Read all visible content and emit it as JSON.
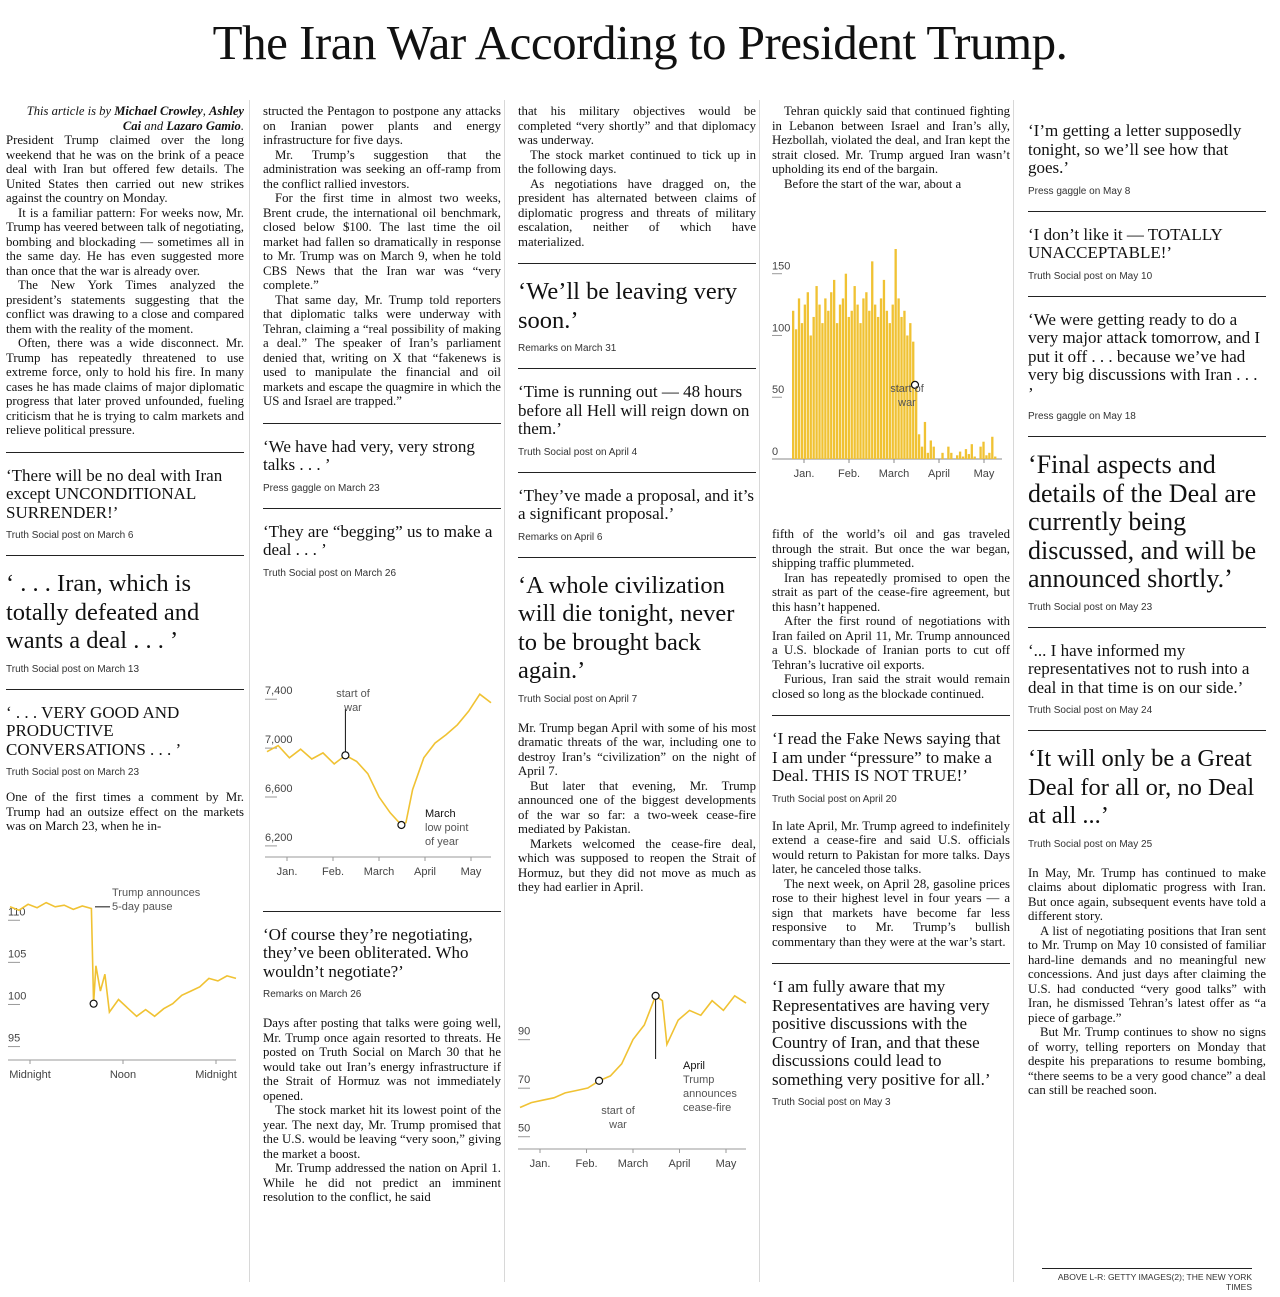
{
  "headline": "The Iran War According to President Trump.",
  "byline": {
    "prefix": "This article is by",
    "author1": "Michael Crowley",
    "author2": "Ashley Cai",
    "and": "and",
    "author3": "Lazaro Gamio"
  },
  "col1": {
    "p1": "President Trump claimed over the long weekend that he was on the brink of a peace deal with Iran but offered few details. The United States then carried out new strikes against the country on Monday.",
    "p2": "It is a familiar pattern: For weeks now, Mr. Trump has veered between talk of negotiating, bombing and blockading — sometimes all in the same day. He has even suggested more than once that the war is already over.",
    "p3": "The New York Times analyzed the president’s statements suggesting that the conflict was drawing to a close and compared them with the reality of the moment.",
    "p4": "Often, there was a wide disconnect. Mr. Trump has repeatedly threatened to use extreme force, only to hold his fire. In many cases he has made claims of major diplomatic progress that later proved unfounded, fueling criticism that he is trying to calm markets and relieve political pressure.",
    "q1": "‘There will be no deal with Iran except UNCONDITIONAL SURRENDER!’",
    "q1_src": "Truth Social post on March 6",
    "q2": "‘ . . . Iran, which is totally defeated and wants a deal . . . ’",
    "q2_src": "Truth Social post on March 13",
    "q3": "‘ . . . VERY GOOD AND PRODUCTIVE CONVERSATIONS . . . ’",
    "q3_src": "Truth Social post on March 23",
    "p5": "One of the first times a comment by Mr. Trump had an outsize effect on the markets was on March 23, when he in-"
  },
  "col2": {
    "p1": "structed the Pentagon to postpone any attacks on Iranian power plants and energy infrastructure for five days.",
    "p2": "Mr. Trump’s suggestion that the administration was seeking an off-ramp from the conflict rallied investors.",
    "p3": "For the first time in almost two weeks, Brent crude, the international oil benchmark, closed below $100. The last time the oil market had fallen so dramatically in response to Mr. Trump was on March 9, when he told CBS News that the Iran war was “very complete.”",
    "p4": "That same day, Mr. Trump told reporters that diplomatic talks were underway with Tehran, claiming a “real possibility of making a deal.” The speaker of Iran’s parliament denied that, writing on X that “fakenews is used to manipulate the financial and oil markets and escape the quagmire in which the US and Israel are trapped.”",
    "q1": "‘We have had very, very strong talks . . . ’",
    "q1_src": "Press gaggle on March 23",
    "q2": "‘They are “begging” us to make a deal . . . ’",
    "q2_src": "Truth Social post on March 26",
    "q3": "‘Of course they’re negotiating, they’ve been obliterated. Who wouldn’t negotiate?’",
    "q3_src": "Remarks on March 26",
    "p5": "Days after posting that talks were going well, Mr. Trump once again resorted to threats. He posted on Truth Social on March 30 that he would take out Iran’s energy infrastructure if the Strait of Hormuz was not immediately opened.",
    "p6": "The stock market hit its lowest point of the year. The next day, Mr. Trump promised that the U.S. would be leaving “very soon,” giving the market a boost.",
    "p7": "Mr. Trump addressed the nation on April 1. While he did not predict an imminent resolution to the conflict, he said"
  },
  "col3": {
    "p1": "that his military objectives would be completed “very shortly” and that diplomacy was underway.",
    "p2": "The stock market continued to tick up in the following days.",
    "p3": "As negotiations have dragged on, the president has alternated between claims of diplomatic progress and threats of military escalation, neither of which have materialized.",
    "q1": "‘We’ll be leaving very soon.’",
    "q1_src": "Remarks on March 31",
    "q2": "‘Time is running out — 48 hours before all Hell will reign down on them.’",
    "q2_src": "Truth Social post on April 4",
    "q3": "‘They’ve made a proposal, and it’s a significant proposal.’",
    "q3_src": "Remarks on April 6",
    "q4": "‘A whole civilization will die tonight, never to be brought back again.’",
    "q4_src": "Truth Social post on April 7",
    "p4": "Mr. Trump began April with some of his most dramatic threats of the war, including one to destroy Iran’s “civilization” on the night of April 7.",
    "p5": "But later that evening, Mr. Trump announced one of the biggest developments of the war so far: a two-week cease-fire mediated by Pakistan.",
    "p6": "Markets welcomed the cease-fire deal, which was supposed to reopen the Strait of Hormuz, but they did not move as much as they had earlier in April."
  },
  "col4": {
    "p1": "Tehran quickly said that continued fighting in Lebanon between Israel and Iran’s ally, Hezbollah, violated the deal, and Iran kept the strait closed. Mr. Trump argued Iran wasn’t upholding its end of the bargain.",
    "p2": "Before the start of the war, about a",
    "p3": "fifth of the world’s oil and gas traveled through the strait. But once the war began, shipping traffic plummeted.",
    "p4": "Iran has repeatedly promised to open the strait as part of the cease-fire agreement, but this hasn’t happened.",
    "p5": "After the first round of negotiations with Iran failed on April 11, Mr. Trump announced a U.S. blockade of Iranian ports to cut off Tehran’s lucrative oil exports.",
    "p6": "Furious, Iran said the strait would remain closed so long as the blockade continued.",
    "q1": "‘I read the Fake News saying that I am under “pressure” to make a Deal. THIS IS NOT TRUE!’",
    "q1_src": "Truth Social post on April 20",
    "p7": "In late April, Mr. Trump agreed to indefinitely extend a cease-fire and said U.S. officials would return to Pakistan for more talks. Days later, he canceled those talks.",
    "p8": "The next week, on April 28, gasoline prices rose to their highest level in four years — a sign that markets have become far less responsive to Mr. Trump’s bullish commentary than they were at the war’s start.",
    "q2": "‘I am fully aware that my Representatives are having very positive discussions with the Country of Iran, and that these discussions could lead to something very positive for all.’",
    "q2_src": "Truth Social post on May 3"
  },
  "col5": {
    "q1": "‘I’m getting a letter supposedly tonight, so we’ll see how that goes.’",
    "q1_src": "Press gaggle on May 8",
    "q2": "‘I don’t like it — TOTALLY UNACCEPTABLE!’",
    "q2_src": "Truth Social post on May 10",
    "q3": "‘We were getting ready to do a very major attack tomorrow, and I put it off . . . because we’ve had very big discussions with Iran . . . ’",
    "q3_src": "Press gaggle on May 18",
    "q4": "‘Final aspects and details of the Deal are currently being discussed, and will be announced shortly.’",
    "q4_src": "Truth Social post on May 23",
    "q5": "‘... I have informed my representatives not to rush into a deal in that time is on our side.’",
    "q5_src": "Truth Social post on May 24",
    "q6": "‘It will only be a Great Deal for all or, no Deal at all ...’",
    "q6_src": "Truth Social post on May 25",
    "p1": "In May, Mr. Trump has continued to make claims about diplomatic progress with Iran. But once again, subsequent events have told a different story.",
    "p2": "A list of negotiating positions that Iran sent to Mr. Trump on May 10 consisted of familiar hard-line demands and no meaningful new concessions. And just days after claiming the U.S. had conducted “very good talks” with Iran, he dismissed Tehran’s latest offer as “a piece of garbage.”",
    "p3": "But Mr. Trump continues to show no signs of worry, telling reporters on Monday that despite his preparations to resume bombing, “there seems to be a very good chance” a deal can still be reached soon."
  },
  "photo_credit": "ABOVE L-R: GETTY IMAGES(2); THE NEW YORK TIMES",
  "chart_data": [
    {
      "type": "line",
      "name": "oil-intraday",
      "title": "",
      "y_ticks": [
        "95",
        "100",
        "105",
        "110"
      ],
      "x_ticks": [
        "Midnight",
        "Noon",
        "Midnight"
      ],
      "ylim": [
        94,
        113
      ],
      "x": [
        0,
        0.04,
        0.08,
        0.12,
        0.16,
        0.2,
        0.24,
        0.28,
        0.32,
        0.36,
        0.37,
        0.38,
        0.4,
        0.42,
        0.44,
        0.48,
        0.52,
        0.56,
        0.6,
        0.64,
        0.68,
        0.72,
        0.76,
        0.8,
        0.84,
        0.88,
        0.92,
        0.96,
        1
      ],
      "values": [
        111,
        110.6,
        111.3,
        110.9,
        111.5,
        111,
        111.2,
        110.7,
        111.1,
        110.8,
        99.5,
        104,
        101,
        103,
        98.5,
        100,
        99,
        98,
        98.8,
        98,
        98.9,
        99.5,
        100.5,
        101,
        101.5,
        102.5,
        102.2,
        102.8,
        102.5
      ],
      "annotation": "Trump announces 5-day pause",
      "source": ""
    },
    {
      "type": "line",
      "name": "stock-index",
      "title": "",
      "y_ticks": [
        "6,200",
        "6,600",
        "7,000",
        "7,400"
      ],
      "x_ticks": [
        "Jan.",
        "Feb.",
        "March",
        "April",
        "May"
      ],
      "ylim": [
        6150,
        7500
      ],
      "x": [
        0,
        0.05,
        0.1,
        0.15,
        0.2,
        0.25,
        0.3,
        0.35,
        0.4,
        0.45,
        0.5,
        0.55,
        0.6,
        0.62,
        0.65,
        0.7,
        0.75,
        0.8,
        0.85,
        0.9,
        0.95,
        1
      ],
      "values": [
        6930,
        6980,
        6880,
        6950,
        6870,
        6920,
        6830,
        6900,
        6850,
        6750,
        6560,
        6430,
        6330,
        6350,
        6620,
        6880,
        7000,
        7070,
        7150,
        7260,
        7400,
        7330
      ],
      "annotation_1": "start of war",
      "annotation_2": "March low point of year",
      "source": ""
    },
    {
      "type": "line",
      "name": "oil-price",
      "title": "",
      "y_ticks": [
        "50",
        "70",
        "90"
      ],
      "x_ticks": [
        "Jan.",
        "Feb.",
        "March",
        "April",
        "May"
      ],
      "ylim": [
        47,
        115
      ],
      "x": [
        0,
        0.05,
        0.1,
        0.15,
        0.2,
        0.25,
        0.3,
        0.35,
        0.4,
        0.45,
        0.5,
        0.55,
        0.6,
        0.63,
        0.65,
        0.7,
        0.75,
        0.8,
        0.85,
        0.9,
        0.95,
        1
      ],
      "values": [
        60,
        62,
        63,
        64,
        66,
        67,
        68,
        71,
        73,
        78,
        88,
        94,
        106,
        104,
        86,
        96,
        100,
        98,
        104,
        100,
        106,
        103
      ],
      "annotation_1": "start of war",
      "annotation_2": "April Trump announces cease-fire",
      "source": ""
    },
    {
      "type": "bar",
      "name": "strait-shipping",
      "title": "",
      "y_ticks": [
        "0",
        "50",
        "100",
        "150"
      ],
      "x_ticks": [
        "Jan.",
        "Feb.",
        "March",
        "April",
        "May"
      ],
      "ylim": [
        0,
        170
      ],
      "values_pre_war_daily": [
        120,
        105,
        130,
        110,
        125,
        135,
        100,
        115,
        140,
        125,
        110,
        130,
        120,
        135,
        145,
        110,
        125,
        130,
        150,
        115,
        120,
        140,
        125,
        110,
        130,
        135,
        120,
        160,
        125,
        115,
        130,
        145,
        120,
        110,
        125,
        170,
        130,
        115,
        120,
        100,
        110,
        95,
        60
      ],
      "values_post_war_daily": [
        20,
        10,
        30,
        5,
        15,
        10,
        0,
        0,
        5,
        0,
        10,
        5,
        0,
        3,
        6,
        2,
        8,
        4,
        12,
        2,
        0,
        10,
        14,
        3,
        5,
        18,
        2
      ],
      "annotation": "start of war",
      "source": "",
      "note": ""
    }
  ]
}
